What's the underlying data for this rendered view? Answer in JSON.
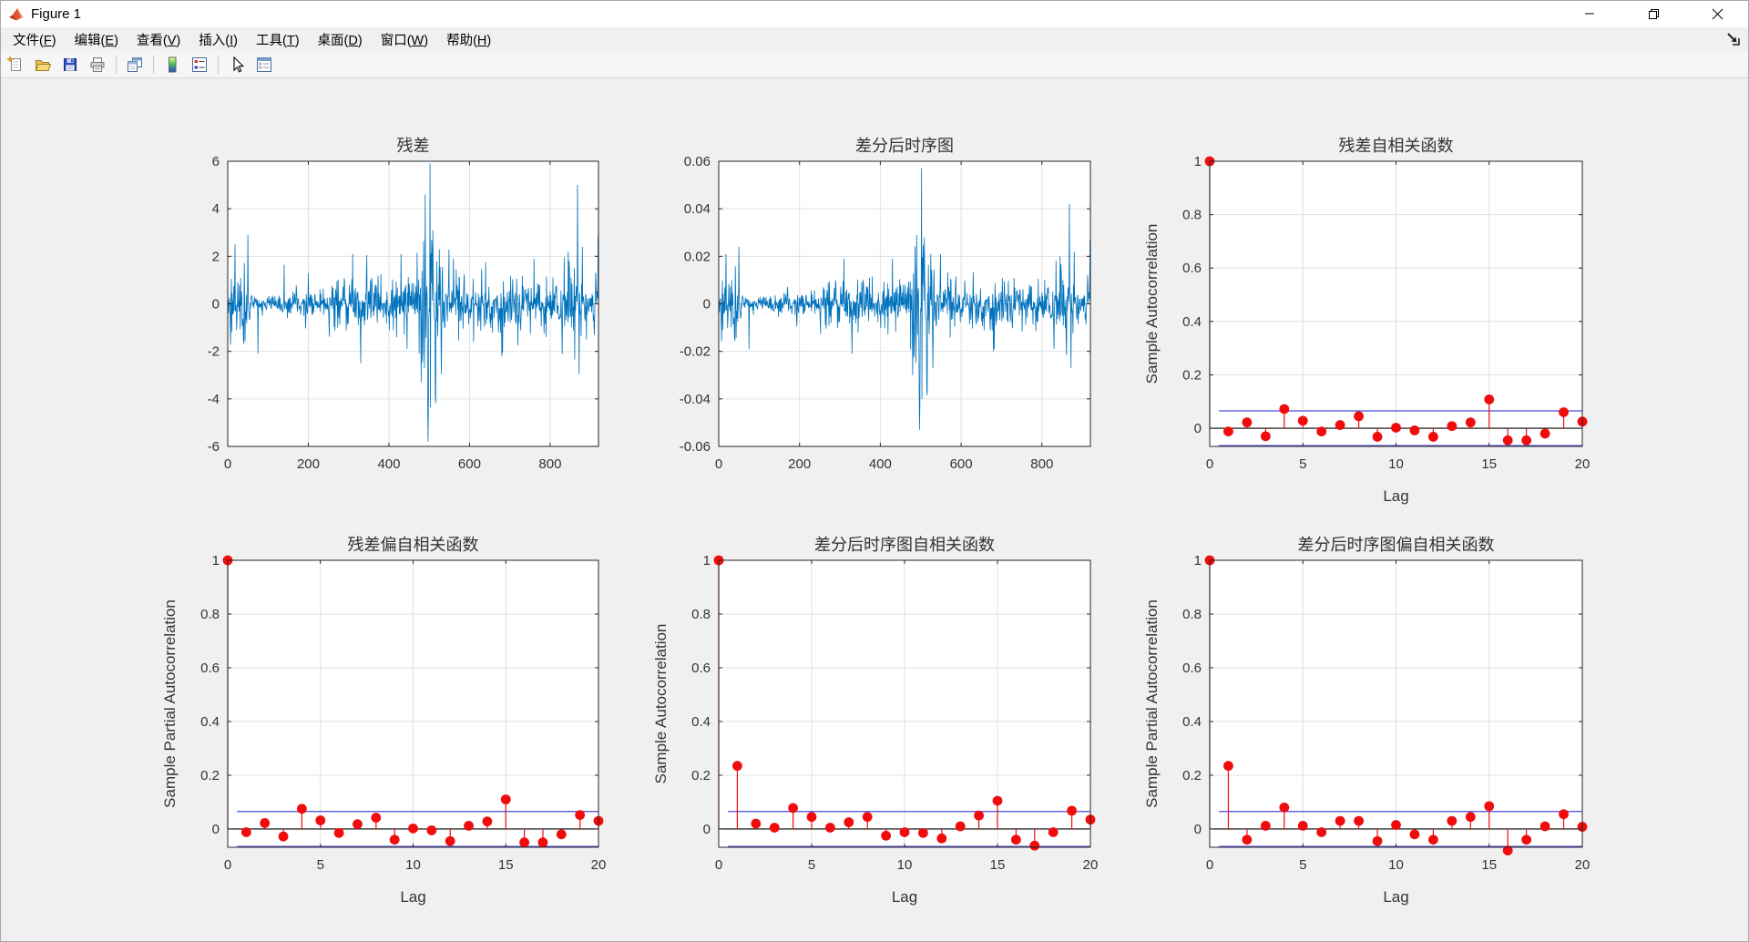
{
  "window": {
    "title": "Figure 1",
    "controls": [
      {
        "name": "minimize"
      },
      {
        "name": "restore"
      },
      {
        "name": "close"
      }
    ]
  },
  "menu": {
    "items": [
      {
        "text": "文件",
        "key": "F"
      },
      {
        "text": "编辑",
        "key": "E"
      },
      {
        "text": "查看",
        "key": "V"
      },
      {
        "text": "插入",
        "key": "I"
      },
      {
        "text": "工具",
        "key": "T"
      },
      {
        "text": "桌面",
        "key": "D"
      },
      {
        "text": "窗口",
        "key": "W"
      },
      {
        "text": "帮助",
        "key": "H"
      }
    ]
  },
  "toolbar": {
    "groups": [
      [
        "new-figure",
        "open-file",
        "save-figure",
        "print-figure"
      ],
      [
        "print-preview"
      ],
      [
        "insert-colorbar",
        "insert-legend"
      ],
      [
        "edit-plot",
        "property-inspector"
      ]
    ]
  },
  "colors": {
    "line_series": "#0072BD",
    "stem": "#f00c0c",
    "confidence_bound": "#4a4adf",
    "zero_line": "#000000",
    "axis": "#262626",
    "grid": "#e0e0e0",
    "plot_bg": "#ffffff",
    "figure_bg": "#f0f0f0",
    "text": "#333333"
  },
  "chart_data": [
    {
      "type": "line",
      "title": "残差",
      "xlabel": "",
      "ylabel": "",
      "xlim": [
        0,
        920
      ],
      "ylim": [
        -6,
        6
      ],
      "xticks": [
        0,
        200,
        400,
        600,
        800
      ],
      "yticks": [
        -6,
        -4,
        -2,
        0,
        2,
        4,
        6
      ],
      "grid": true,
      "n_points": 920,
      "seed": 42,
      "envelope_scale": 1,
      "amplitude_envelope": [
        [
          0,
          0.9
        ],
        [
          12,
          1.6
        ],
        [
          25,
          1.2
        ],
        [
          45,
          1.8
        ],
        [
          58,
          0.7
        ],
        [
          68,
          0.28
        ],
        [
          100,
          0.3
        ],
        [
          130,
          0.45
        ],
        [
          150,
          0.6
        ],
        [
          180,
          0.5
        ],
        [
          210,
          0.55
        ],
        [
          240,
          0.6
        ],
        [
          265,
          0.8
        ],
        [
          285,
          0.75
        ],
        [
          305,
          1.05
        ],
        [
          325,
          0.95
        ],
        [
          345,
          1.1
        ],
        [
          365,
          0.95
        ],
        [
          385,
          1.1
        ],
        [
          405,
          1.05
        ],
        [
          425,
          1.15
        ],
        [
          445,
          1.05
        ],
        [
          462,
          1.3
        ],
        [
          475,
          1.9
        ],
        [
          488,
          2.9
        ],
        [
          498,
          3.4
        ],
        [
          508,
          2.6
        ],
        [
          520,
          1.9
        ],
        [
          535,
          1.4
        ],
        [
          555,
          1.15
        ],
        [
          580,
          1.0
        ],
        [
          605,
          0.95
        ],
        [
          630,
          1.05
        ],
        [
          655,
          1.0
        ],
        [
          680,
          1.05
        ],
        [
          705,
          0.95
        ],
        [
          730,
          1.0
        ],
        [
          755,
          1.0
        ],
        [
          780,
          1.05
        ],
        [
          805,
          1.0
        ],
        [
          828,
          1.15
        ],
        [
          848,
          1.35
        ],
        [
          865,
          1.6
        ],
        [
          880,
          1.25
        ],
        [
          900,
          1.1
        ],
        [
          920,
          1.35
        ]
      ],
      "key_points": [
        [
          18,
          2.5
        ],
        [
          50,
          2.9
        ],
        [
          75,
          -2.1
        ],
        [
          140,
          1.65
        ],
        [
          200,
          1.3
        ],
        [
          310,
          2.1
        ],
        [
          330,
          -2.5
        ],
        [
          345,
          2.05
        ],
        [
          430,
          2.1
        ],
        [
          445,
          -1.9
        ],
        [
          470,
          2.15
        ],
        [
          480,
          -3.3
        ],
        [
          490,
          4.6
        ],
        [
          497,
          -5.8
        ],
        [
          503,
          -4.35
        ],
        [
          509,
          3.1
        ],
        [
          515,
          -3.9
        ],
        [
          525,
          2.3
        ],
        [
          530,
          -2.95
        ],
        [
          560,
          1.9
        ],
        [
          610,
          -1.6
        ],
        [
          640,
          1.75
        ],
        [
          680,
          -2.2
        ],
        [
          720,
          -1.75
        ],
        [
          760,
          1.9
        ],
        [
          790,
          -1.4
        ],
        [
          830,
          -2.1
        ],
        [
          845,
          2.2
        ],
        [
          860,
          1.5
        ],
        [
          868,
          5.0
        ],
        [
          872,
          -2.95
        ],
        [
          880,
          2.4
        ],
        [
          890,
          -1.5
        ],
        [
          910,
          -1.3
        ],
        [
          919,
          2.9
        ]
      ]
    },
    {
      "type": "line",
      "title": "差分后时序图",
      "xlabel": "",
      "ylabel": "",
      "xlim": [
        0,
        920
      ],
      "ylim": [
        -0.06,
        0.06
      ],
      "xticks": [
        0,
        200,
        400,
        600,
        800
      ],
      "yticks": [
        -0.06,
        -0.04,
        -0.02,
        0,
        0.02,
        0.04,
        0.06
      ],
      "grid": true,
      "n_points": 920,
      "seed": 42,
      "envelope_scale": 0.0092,
      "amplitude_envelope": [
        [
          0,
          0.9
        ],
        [
          12,
          1.6
        ],
        [
          25,
          1.2
        ],
        [
          45,
          1.8
        ],
        [
          58,
          0.7
        ],
        [
          68,
          0.28
        ],
        [
          100,
          0.3
        ],
        [
          130,
          0.45
        ],
        [
          150,
          0.6
        ],
        [
          180,
          0.5
        ],
        [
          210,
          0.55
        ],
        [
          240,
          0.6
        ],
        [
          265,
          0.8
        ],
        [
          285,
          0.75
        ],
        [
          305,
          1.05
        ],
        [
          325,
          0.95
        ],
        [
          345,
          1.1
        ],
        [
          365,
          0.95
        ],
        [
          385,
          1.1
        ],
        [
          405,
          1.05
        ],
        [
          425,
          1.15
        ],
        [
          445,
          1.05
        ],
        [
          462,
          1.3
        ],
        [
          475,
          1.9
        ],
        [
          488,
          2.9
        ],
        [
          498,
          3.4
        ],
        [
          508,
          2.6
        ],
        [
          520,
          1.9
        ],
        [
          535,
          1.4
        ],
        [
          555,
          1.15
        ],
        [
          580,
          1.0
        ],
        [
          605,
          0.95
        ],
        [
          630,
          1.05
        ],
        [
          655,
          1.0
        ],
        [
          680,
          1.05
        ],
        [
          705,
          0.95
        ],
        [
          730,
          1.0
        ],
        [
          755,
          1.0
        ],
        [
          780,
          1.05
        ],
        [
          805,
          1.0
        ],
        [
          828,
          1.15
        ],
        [
          848,
          1.35
        ],
        [
          865,
          1.6
        ],
        [
          880,
          1.25
        ],
        [
          900,
          1.1
        ],
        [
          920,
          1.35
        ]
      ],
      "key_points": [
        [
          18,
          0.021
        ],
        [
          50,
          0.024
        ],
        [
          75,
          -0.019
        ],
        [
          310,
          0.019
        ],
        [
          330,
          -0.021
        ],
        [
          430,
          0.019
        ],
        [
          480,
          -0.03
        ],
        [
          490,
          0.029
        ],
        [
          497,
          -0.053
        ],
        [
          503,
          -0.04
        ],
        [
          509,
          0.028
        ],
        [
          515,
          -0.036
        ],
        [
          525,
          0.021
        ],
        [
          530,
          -0.027
        ],
        [
          680,
          -0.02
        ],
        [
          830,
          -0.019
        ],
        [
          845,
          0.02
        ],
        [
          868,
          0.042
        ],
        [
          872,
          -0.027
        ],
        [
          880,
          0.022
        ],
        [
          919,
          0.027
        ]
      ]
    },
    {
      "type": "stem",
      "title": "残差自相关函数",
      "xlabel": "Lag",
      "ylabel": "Sample Autocorrelation",
      "xlim": [
        0,
        20
      ],
      "ylim": [
        -0.068,
        1
      ],
      "xticks": [
        0,
        5,
        10,
        15,
        20
      ],
      "yticks": [
        0,
        0.2,
        0.4,
        0.6,
        0.8,
        1
      ],
      "grid": true,
      "confidence_bound": 0.065,
      "lags": [
        0,
        1,
        2,
        3,
        4,
        5,
        6,
        7,
        8,
        9,
        10,
        11,
        12,
        13,
        14,
        15,
        16,
        17,
        18,
        19,
        20
      ],
      "values": [
        1,
        -0.012,
        0.022,
        -0.03,
        0.072,
        0.028,
        -0.012,
        0.012,
        0.045,
        -0.032,
        0.002,
        -0.008,
        -0.032,
        0.008,
        0.022,
        0.108,
        -0.045,
        -0.045,
        -0.02,
        0.06,
        0.025
      ]
    },
    {
      "type": "stem",
      "title": "残差偏自相关函数",
      "xlabel": "Lag",
      "ylabel": "Sample Partial Autocorrelation",
      "xlim": [
        0,
        20
      ],
      "ylim": [
        -0.068,
        1
      ],
      "xticks": [
        0,
        5,
        10,
        15,
        20
      ],
      "yticks": [
        0,
        0.2,
        0.4,
        0.6,
        0.8,
        1
      ],
      "grid": true,
      "confidence_bound": 0.065,
      "lags": [
        0,
        1,
        2,
        3,
        4,
        5,
        6,
        7,
        8,
        9,
        10,
        11,
        12,
        13,
        14,
        15,
        16,
        17,
        18,
        19,
        20
      ],
      "values": [
        1,
        -0.012,
        0.022,
        -0.028,
        0.075,
        0.032,
        -0.015,
        0.018,
        0.042,
        -0.04,
        0.002,
        -0.005,
        -0.045,
        0.012,
        0.028,
        0.11,
        -0.05,
        -0.05,
        -0.02,
        0.052,
        0.03
      ]
    },
    {
      "type": "stem",
      "title": "差分后时序图自相关函数",
      "xlabel": "Lag",
      "ylabel": "Sample Autocorrelation",
      "xlim": [
        0,
        20
      ],
      "ylim": [
        -0.068,
        1
      ],
      "xticks": [
        0,
        5,
        10,
        15,
        20
      ],
      "yticks": [
        0,
        0.2,
        0.4,
        0.6,
        0.8,
        1
      ],
      "grid": true,
      "confidence_bound": 0.065,
      "lags": [
        0,
        1,
        2,
        3,
        4,
        5,
        6,
        7,
        8,
        9,
        10,
        11,
        12,
        13,
        14,
        15,
        16,
        17,
        18,
        19,
        20
      ],
      "values": [
        1,
        0.235,
        0.02,
        0.005,
        0.078,
        0.045,
        0.005,
        0.025,
        0.045,
        -0.025,
        -0.012,
        -0.015,
        -0.035,
        0.01,
        0.05,
        0.105,
        -0.04,
        -0.062,
        -0.012,
        0.068,
        0.035
      ]
    },
    {
      "type": "stem",
      "title": "差分后时序图偏自相关函数",
      "xlabel": "Lag",
      "ylabel": "Sample Partial Autocorrelation",
      "xlim": [
        0,
        20
      ],
      "ylim": [
        -0.068,
        1
      ],
      "xticks": [
        0,
        5,
        10,
        15,
        20
      ],
      "yticks": [
        0,
        0.2,
        0.4,
        0.6,
        0.8,
        1
      ],
      "grid": true,
      "confidence_bound": 0.065,
      "lags": [
        0,
        1,
        2,
        3,
        4,
        5,
        6,
        7,
        8,
        9,
        10,
        11,
        12,
        13,
        14,
        15,
        16,
        17,
        18,
        19,
        20
      ],
      "values": [
        1,
        0.235,
        -0.04,
        0.012,
        0.08,
        0.012,
        -0.012,
        0.03,
        0.03,
        -0.045,
        0.015,
        -0.02,
        -0.04,
        0.03,
        0.045,
        0.085,
        -0.08,
        -0.04,
        0.01,
        0.055,
        0.008
      ]
    }
  ]
}
